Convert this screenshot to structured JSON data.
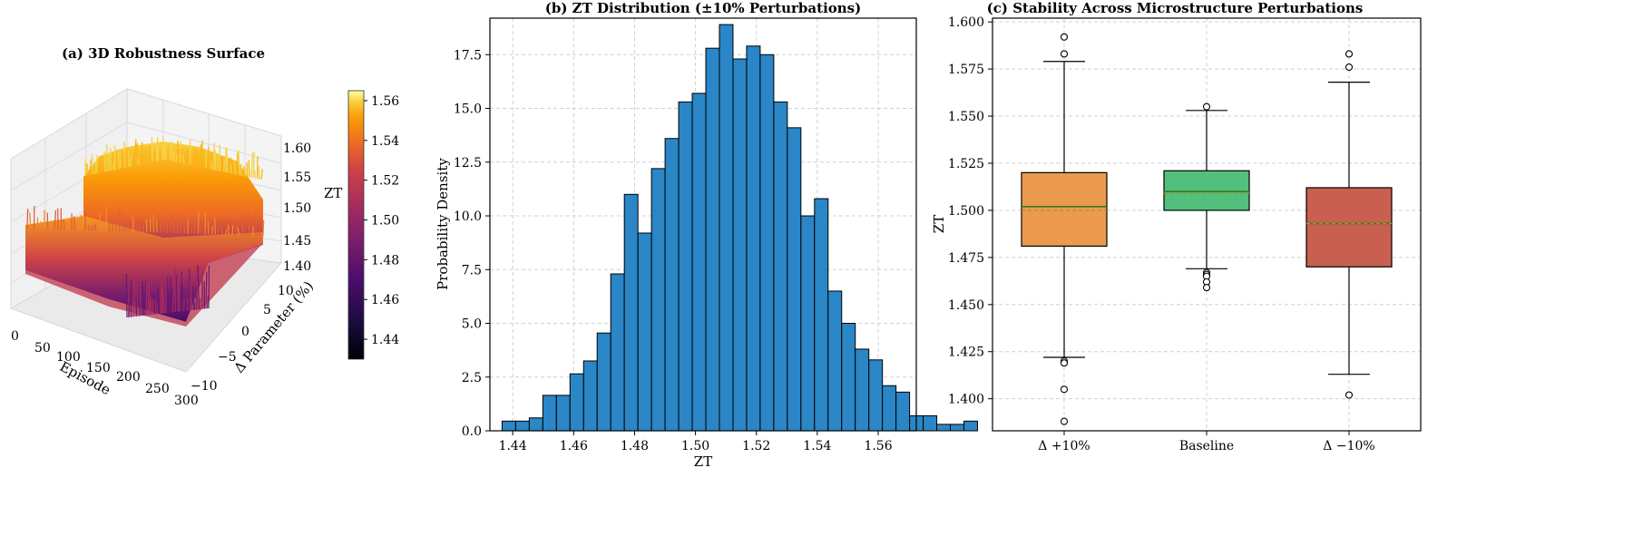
{
  "colors": {
    "hist_fill": "#2a86c6",
    "box_plus": "#ec9a4f",
    "box_base": "#52bf7c",
    "box_minus": "#c95f50",
    "median_line": "#3a7a18",
    "mean_line": "#9a9a2a"
  },
  "chart_data": [
    {
      "id": "a",
      "type": "surface3d",
      "title": "(a) 3D Robustness Surface",
      "xlabel": "Episode",
      "ylabel": "Δ Parameter (%)",
      "zlabel": "ZT",
      "x_ticks": [
        "0",
        "50",
        "100",
        "150",
        "200",
        "250",
        "300"
      ],
      "y_ticks": [
        "−10",
        "−5",
        "0",
        "5",
        "10"
      ],
      "z_ticks": [
        "1.40",
        "1.45",
        "1.50",
        "1.55",
        "1.60"
      ],
      "colorbar": {
        "ticks": [
          "1.44",
          "1.46",
          "1.48",
          "1.50",
          "1.52",
          "1.54",
          "1.56"
        ],
        "range": [
          1.43,
          1.565
        ]
      }
    },
    {
      "id": "b",
      "type": "bar",
      "title": "(b) ZT Distribution (±10% Perturbations)",
      "xlabel": "ZT",
      "ylabel": "Probability Density",
      "xlim": [
        1.4325,
        1.5725
      ],
      "ylim": [
        0,
        19.2
      ],
      "x_ticks": [
        "1.44",
        "1.46",
        "1.48",
        "1.50",
        "1.52",
        "1.54",
        "1.56"
      ],
      "y_ticks": [
        "0.0",
        "2.5",
        "5.0",
        "7.5",
        "10.0",
        "12.5",
        "15.0",
        "17.5"
      ],
      "bin_start": 1.4365,
      "bin_width": 0.00446,
      "values": [
        0.45,
        0.45,
        0.6,
        1.65,
        1.65,
        2.65,
        3.25,
        4.55,
        7.3,
        11.0,
        9.2,
        12.2,
        13.6,
        15.3,
        15.7,
        17.8,
        18.9,
        17.3,
        17.9,
        17.5,
        15.3,
        14.1,
        10.0,
        10.8,
        6.5,
        5.0,
        3.8,
        3.3,
        2.1,
        1.8,
        0.7,
        0.7,
        0.3,
        0.3,
        0.45
      ],
      "grid": true
    },
    {
      "id": "c",
      "type": "box",
      "title": "(c) Stability Across Microstructure Perturbations",
      "ylabel": "ZT",
      "ylim": [
        1.383,
        1.602
      ],
      "y_ticks": [
        "1.400",
        "1.425",
        "1.450",
        "1.475",
        "1.500",
        "1.525",
        "1.550",
        "1.575",
        "1.600"
      ],
      "categories": [
        "Δ +10%",
        "Baseline",
        "Δ −10%"
      ],
      "boxes": [
        {
          "q1": 1.481,
          "median": 1.502,
          "mean": 1.5,
          "q3": 1.52,
          "whisker_low": 1.422,
          "whisker_high": 1.579,
          "outliers": [
            1.592,
            1.583,
            1.42,
            1.419,
            1.405,
            1.388
          ]
        },
        {
          "q1": 1.5,
          "median": 1.51,
          "mean": 1.509,
          "q3": 1.521,
          "whisker_low": 1.469,
          "whisker_high": 1.553,
          "outliers": [
            1.555,
            1.467,
            1.466,
            1.465,
            1.462,
            1.459
          ]
        },
        {
          "q1": 1.47,
          "median": 1.493,
          "mean": 1.493,
          "q3": 1.512,
          "whisker_low": 1.413,
          "whisker_high": 1.568,
          "outliers": [
            1.583,
            1.576,
            1.402
          ]
        }
      ],
      "grid": true
    }
  ]
}
